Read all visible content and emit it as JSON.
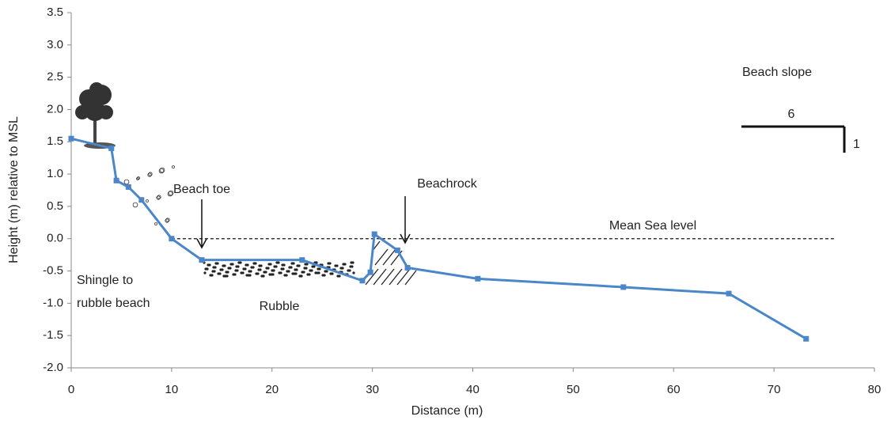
{
  "chart_data": {
    "type": "line",
    "x": [
      0,
      4,
      4.5,
      5.7,
      7,
      10,
      13,
      23,
      29,
      29.8,
      30.2,
      32.5,
      33.5,
      40.5,
      55,
      65.5,
      73.2
    ],
    "values": [
      1.55,
      1.4,
      0.9,
      0.8,
      0.6,
      0.0,
      -0.33,
      -0.33,
      -0.65,
      -0.52,
      0.07,
      -0.18,
      -0.45,
      -0.62,
      -0.75,
      -0.85,
      -1.55
    ],
    "color": "#4a86c8",
    "xlabel": "Distance (m)",
    "ylabel": "Height (m) relative to MSL",
    "xlim": [
      0,
      80
    ],
    "xticks": [
      0,
      10,
      20,
      30,
      40,
      50,
      60,
      70,
      80
    ],
    "ylim": [
      -2.0,
      3.5
    ],
    "yticks": [
      {
        "value": -2,
        "label": "-2.0"
      },
      {
        "value": -1.5,
        "label": "-1.5"
      },
      {
        "value": -1,
        "label": "-1.0"
      },
      -0.5,
      {
        "value": 0,
        "label": "0.0"
      },
      0.5,
      {
        "value": 1,
        "label": "1.0"
      },
      1.5,
      {
        "value": 2,
        "label": "2.0"
      },
      2.5,
      {
        "value": 3,
        "label": "3.0"
      },
      3.5
    ],
    "grid": false,
    "reference_line": {
      "label": "Mean Sea level",
      "y": 0,
      "x": [
        10,
        76
      ]
    },
    "annotations": [
      "Beach toe",
      "Beachrock",
      "Shingle to",
      "rubble beach",
      "Rubble",
      "Beach slope",
      "6",
      "1"
    ]
  }
}
